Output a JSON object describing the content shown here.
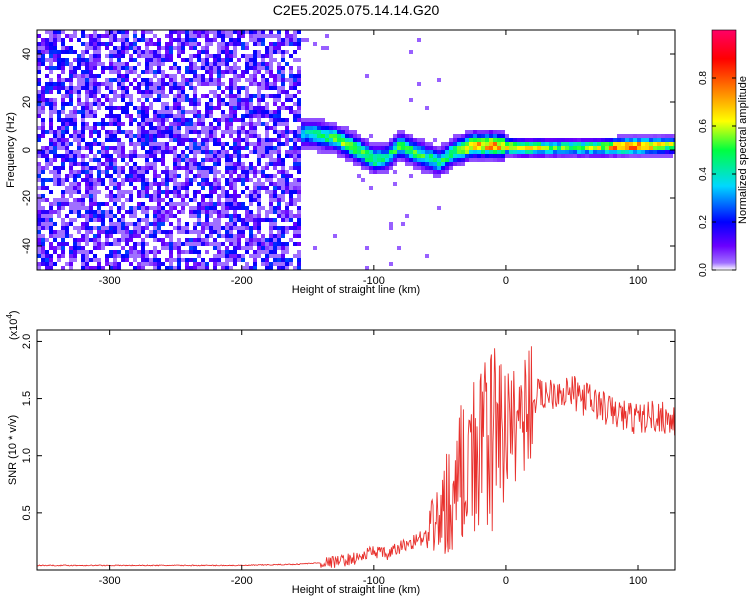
{
  "title": "C2E5.2025.075.14.14.G20",
  "chart_data": [
    {
      "type": "heatmap",
      "xlabel": "Height of straight line (km)",
      "ylabel": "Frequency (Hz)",
      "xlim": [
        -355,
        128
      ],
      "ylim": [
        -50,
        50
      ],
      "xticks": [
        -300,
        -200,
        -100,
        0,
        100
      ],
      "yticks": [
        -40,
        -20,
        0,
        20,
        40
      ],
      "grid": false,
      "colorbar": {
        "label": "Normalized spectral amplitude",
        "range": [
          0,
          1
        ],
        "ticks": [
          0.0,
          0.2,
          0.4,
          0.6,
          0.8
        ],
        "tick_labels": [
          "0.0",
          "0.2",
          "0.4",
          "0.6",
          "0.8"
        ],
        "colormap": [
          "#ffffff",
          "#a070ff",
          "#6a00ff",
          "#0000ff",
          "#00d8ff",
          "#00ff40",
          "#ffff00",
          "#ff8000",
          "#ff0000",
          "#ff0066"
        ]
      },
      "noise_region": {
        "x_range": [
          -355,
          -155
        ],
        "frequency_range": [
          -50,
          50
        ],
        "amplitude": [
          0.05,
          0.25
        ]
      },
      "signal_ridge": {
        "points": [
          {
            "x": -175,
            "f": 6,
            "amp": 0.3
          },
          {
            "x": -150,
            "f": 7,
            "amp": 0.45
          },
          {
            "x": -130,
            "f": 5,
            "amp": 0.55
          },
          {
            "x": -115,
            "f": 1,
            "amp": 0.6
          },
          {
            "x": -100,
            "f": -4,
            "amp": 0.55
          },
          {
            "x": -90,
            "f": -3,
            "amp": 0.45
          },
          {
            "x": -80,
            "f": 2,
            "amp": 0.55
          },
          {
            "x": -65,
            "f": -2,
            "amp": 0.5
          },
          {
            "x": -50,
            "f": -5,
            "amp": 0.5
          },
          {
            "x": -40,
            "f": -1,
            "amp": 0.55
          },
          {
            "x": -25,
            "f": 2,
            "amp": 0.75
          },
          {
            "x": -10,
            "f": 2,
            "amp": 0.8
          },
          {
            "x": 10,
            "f": 1,
            "amp": 0.75
          },
          {
            "x": 40,
            "f": 1,
            "amp": 0.55
          },
          {
            "x": 70,
            "f": 1,
            "amp": 0.6
          },
          {
            "x": 90,
            "f": 1.5,
            "amp": 0.95
          },
          {
            "x": 128,
            "f": 2,
            "amp": 0.6
          }
        ]
      }
    },
    {
      "type": "line",
      "xlabel": "Height of straight line (km)",
      "ylabel": "SNR (10 * v/v)",
      "y_multiplier": "(x10",
      "y_exponent": "4",
      "xlim": [
        -355,
        128
      ],
      "ylim": [
        0,
        2.1
      ],
      "xticks": [
        -300,
        -200,
        -100,
        0,
        100
      ],
      "yticks": [
        0.5,
        1.0,
        1.5,
        2.0
      ],
      "ytick_labels": [
        "0.5",
        "1.0",
        "1.5",
        "2.0"
      ],
      "grid": false,
      "color": "#e8302c",
      "series": [
        {
          "x": [
            -355,
            -300,
            -250,
            -200,
            -160,
            -130,
            -110,
            -100,
            -90,
            -80,
            -70,
            -60,
            -50,
            -40,
            -30,
            -20,
            -10,
            0,
            10,
            20,
            30,
            40,
            50,
            60,
            70,
            80,
            90,
            100,
            110,
            120,
            128
          ],
          "y": [
            0.04,
            0.04,
            0.04,
            0.04,
            0.05,
            0.07,
            0.11,
            0.17,
            0.13,
            0.2,
            0.25,
            0.3,
            0.45,
            0.75,
            0.95,
            1.05,
            1.15,
            1.2,
            1.35,
            1.5,
            1.55,
            1.58,
            1.55,
            1.5,
            1.45,
            1.38,
            1.35,
            1.32,
            1.35,
            1.34,
            1.28
          ]
        }
      ]
    }
  ]
}
